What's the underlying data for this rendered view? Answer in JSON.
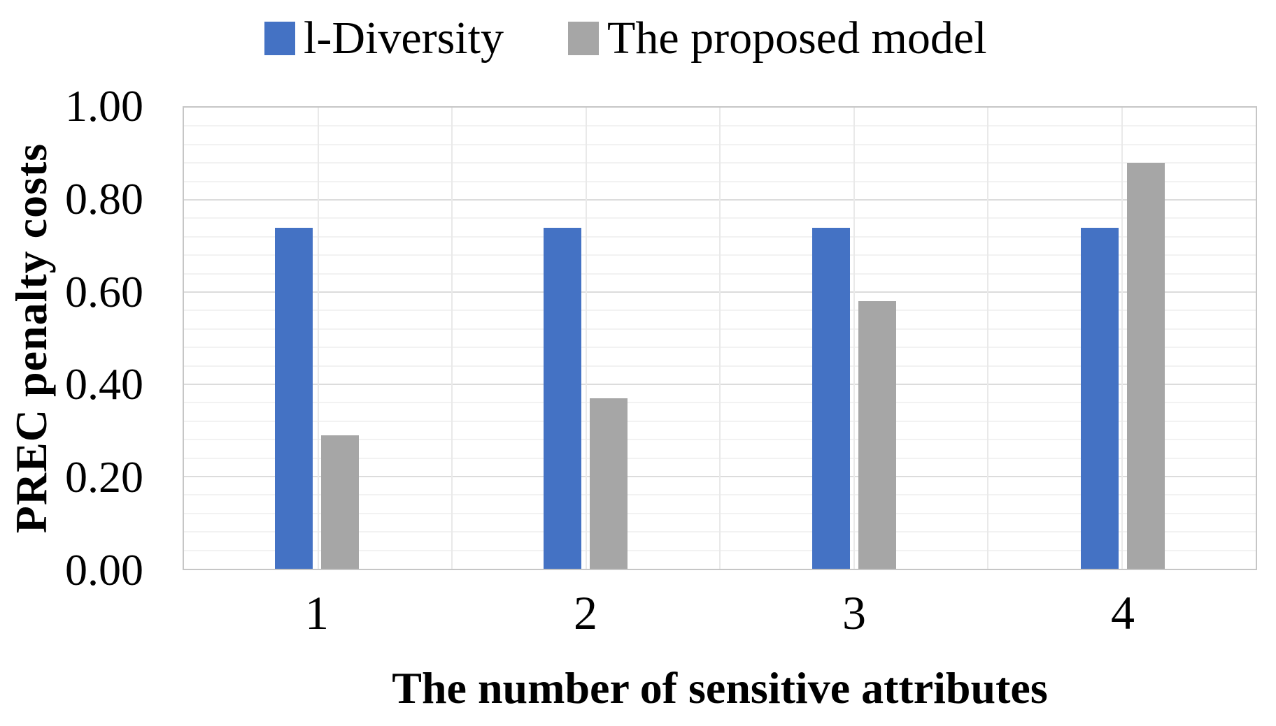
{
  "legend": {
    "items": [
      {
        "label": "l-Diversity",
        "color": "#4472C4"
      },
      {
        "label": "The proposed model",
        "color": "#A6A6A6"
      }
    ]
  },
  "axes": {
    "x_title": "The number of sensitive attributes",
    "y_title": "PREC penalty costs",
    "y_ticks": [
      {
        "label": "0.00",
        "value": 0.0
      },
      {
        "label": "0.20",
        "value": 0.2
      },
      {
        "label": "0.40",
        "value": 0.4
      },
      {
        "label": "0.60",
        "value": 0.6
      },
      {
        "label": "0.80",
        "value": 0.8
      },
      {
        "label": "1.00",
        "value": 1.0
      }
    ]
  },
  "chart_data": {
    "type": "bar",
    "title": "",
    "categories": [
      "1",
      "2",
      "3",
      "4"
    ],
    "series": [
      {
        "name": "l-Diversity",
        "color": "#4472C4",
        "values": [
          0.74,
          0.74,
          0.74,
          0.74
        ]
      },
      {
        "name": "The proposed model",
        "color": "#A6A6A6",
        "values": [
          0.29,
          0.37,
          0.58,
          0.88
        ]
      }
    ],
    "xlabel": "The number of sensitive attributes",
    "ylabel": "PREC penalty costs",
    "ylim": [
      0,
      1
    ],
    "y_major_unit": 0.2,
    "y_minor_unit": 0.04,
    "grid": {
      "horizontal_minor": true,
      "horizontal_major": true,
      "vertical_half_category": true
    },
    "legend_position": "top"
  }
}
